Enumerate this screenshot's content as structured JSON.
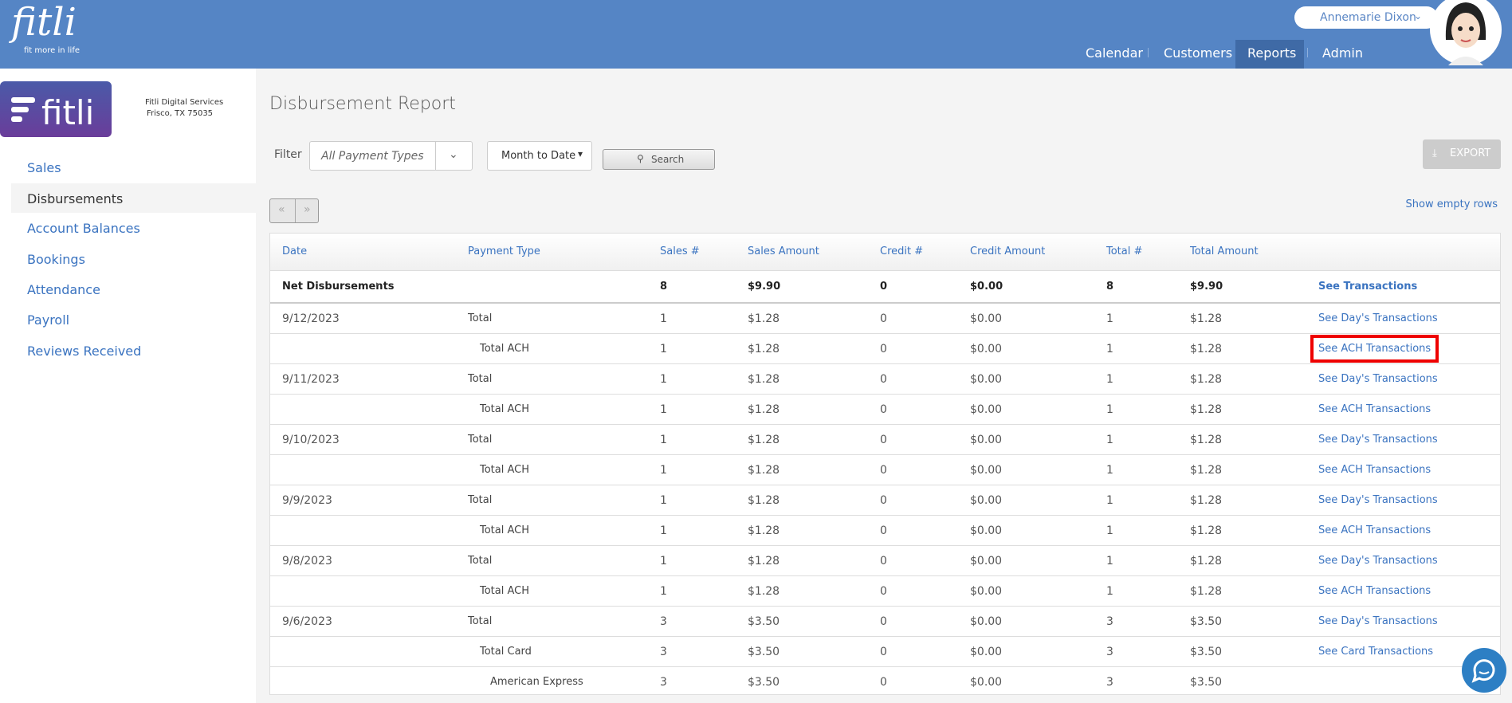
{
  "header": {
    "logo": "fitli",
    "tagline": "fit more in life",
    "user": "Annemarie Dixon",
    "nav": [
      "Calendar",
      "Customers",
      "Reports",
      "Admin"
    ]
  },
  "sidebar": {
    "company": "Fitli Digital Services",
    "address": "Frisco, TX 75035",
    "menu": [
      "Sales",
      "Disbursements",
      "Account Balances",
      "Bookings",
      "Attendance",
      "Payroll",
      "Reviews Received"
    ]
  },
  "report": {
    "title": "Disbursement Report",
    "filter_label": "Filter",
    "payment_type": "All Payment Types",
    "period": "Month to Date",
    "search": "Search",
    "export": "EXPORT",
    "show_empty": "Show empty rows",
    "prev": "«",
    "next": "»"
  },
  "table": {
    "columns": [
      "Date",
      "Payment Type",
      "Sales #",
      "Sales Amount",
      "Credit #",
      "Credit Amount",
      "Total #",
      "Total Amount"
    ],
    "net": {
      "label": "Net Disbursements",
      "sales_count": "8",
      "sales_amount": "$9.90",
      "credit_count": "0",
      "credit_amount": "$0.00",
      "total_count": "8",
      "total_amount": "$9.90",
      "link": "See Transactions"
    },
    "rows": [
      {
        "date": "9/12/2023",
        "type": "Total",
        "sales_count": "1",
        "sales_amount": "$1.28",
        "credit_count": "0",
        "credit_amount": "$0.00",
        "total_count": "1",
        "total_amount": "$1.28",
        "link": "See Day's Transactions"
      },
      {
        "type": "Total ACH",
        "sales_count": "1",
        "sales_amount": "$1.28",
        "credit_count": "0",
        "credit_amount": "$0.00",
        "total_count": "1",
        "total_amount": "$1.28",
        "link": "See ACH Transactions"
      },
      {
        "date": "9/11/2023",
        "type": "Total",
        "sales_count": "1",
        "sales_amount": "$1.28",
        "credit_count": "0",
        "credit_amount": "$0.00",
        "total_count": "1",
        "total_amount": "$1.28",
        "link": "See Day's Transactions"
      },
      {
        "type": "Total ACH",
        "sales_count": "1",
        "sales_amount": "$1.28",
        "credit_count": "0",
        "credit_amount": "$0.00",
        "total_count": "1",
        "total_amount": "$1.28",
        "link": "See ACH Transactions"
      },
      {
        "date": "9/10/2023",
        "type": "Total",
        "sales_count": "1",
        "sales_amount": "$1.28",
        "credit_count": "0",
        "credit_amount": "$0.00",
        "total_count": "1",
        "total_amount": "$1.28",
        "link": "See Day's Transactions"
      },
      {
        "type": "Total ACH",
        "sales_count": "1",
        "sales_amount": "$1.28",
        "credit_count": "0",
        "credit_amount": "$0.00",
        "total_count": "1",
        "total_amount": "$1.28",
        "link": "See ACH Transactions"
      },
      {
        "date": "9/9/2023",
        "type": "Total",
        "sales_count": "1",
        "sales_amount": "$1.28",
        "credit_count": "0",
        "credit_amount": "$0.00",
        "total_count": "1",
        "total_amount": "$1.28",
        "link": "See Day's Transactions"
      },
      {
        "type": "Total ACH",
        "sales_count": "1",
        "sales_amount": "$1.28",
        "credit_count": "0",
        "credit_amount": "$0.00",
        "total_count": "1",
        "total_amount": "$1.28",
        "link": "See ACH Transactions"
      },
      {
        "date": "9/8/2023",
        "type": "Total",
        "sales_count": "1",
        "sales_amount": "$1.28",
        "credit_count": "0",
        "credit_amount": "$0.00",
        "total_count": "1",
        "total_amount": "$1.28",
        "link": "See Day's Transactions"
      },
      {
        "type": "Total ACH",
        "sales_count": "1",
        "sales_amount": "$1.28",
        "credit_count": "0",
        "credit_amount": "$0.00",
        "total_count": "1",
        "total_amount": "$1.28",
        "link": "See ACH Transactions"
      },
      {
        "date": "9/6/2023",
        "type": "Total",
        "sales_count": "3",
        "sales_amount": "$3.50",
        "credit_count": "0",
        "credit_amount": "$0.00",
        "total_count": "3",
        "total_amount": "$3.50",
        "link": "See Day's Transactions"
      },
      {
        "type": "Total Card",
        "sales_count": "3",
        "sales_amount": "$3.50",
        "credit_count": "0",
        "credit_amount": "$0.00",
        "total_count": "3",
        "total_amount": "$3.50",
        "link": "See Card Transactions"
      },
      {
        "type": "American Express",
        "sales_count": "3",
        "sales_amount": "$3.50",
        "credit_count": "0",
        "credit_amount": "$0.00",
        "total_count": "3",
        "total_amount": "$3.50"
      }
    ]
  }
}
